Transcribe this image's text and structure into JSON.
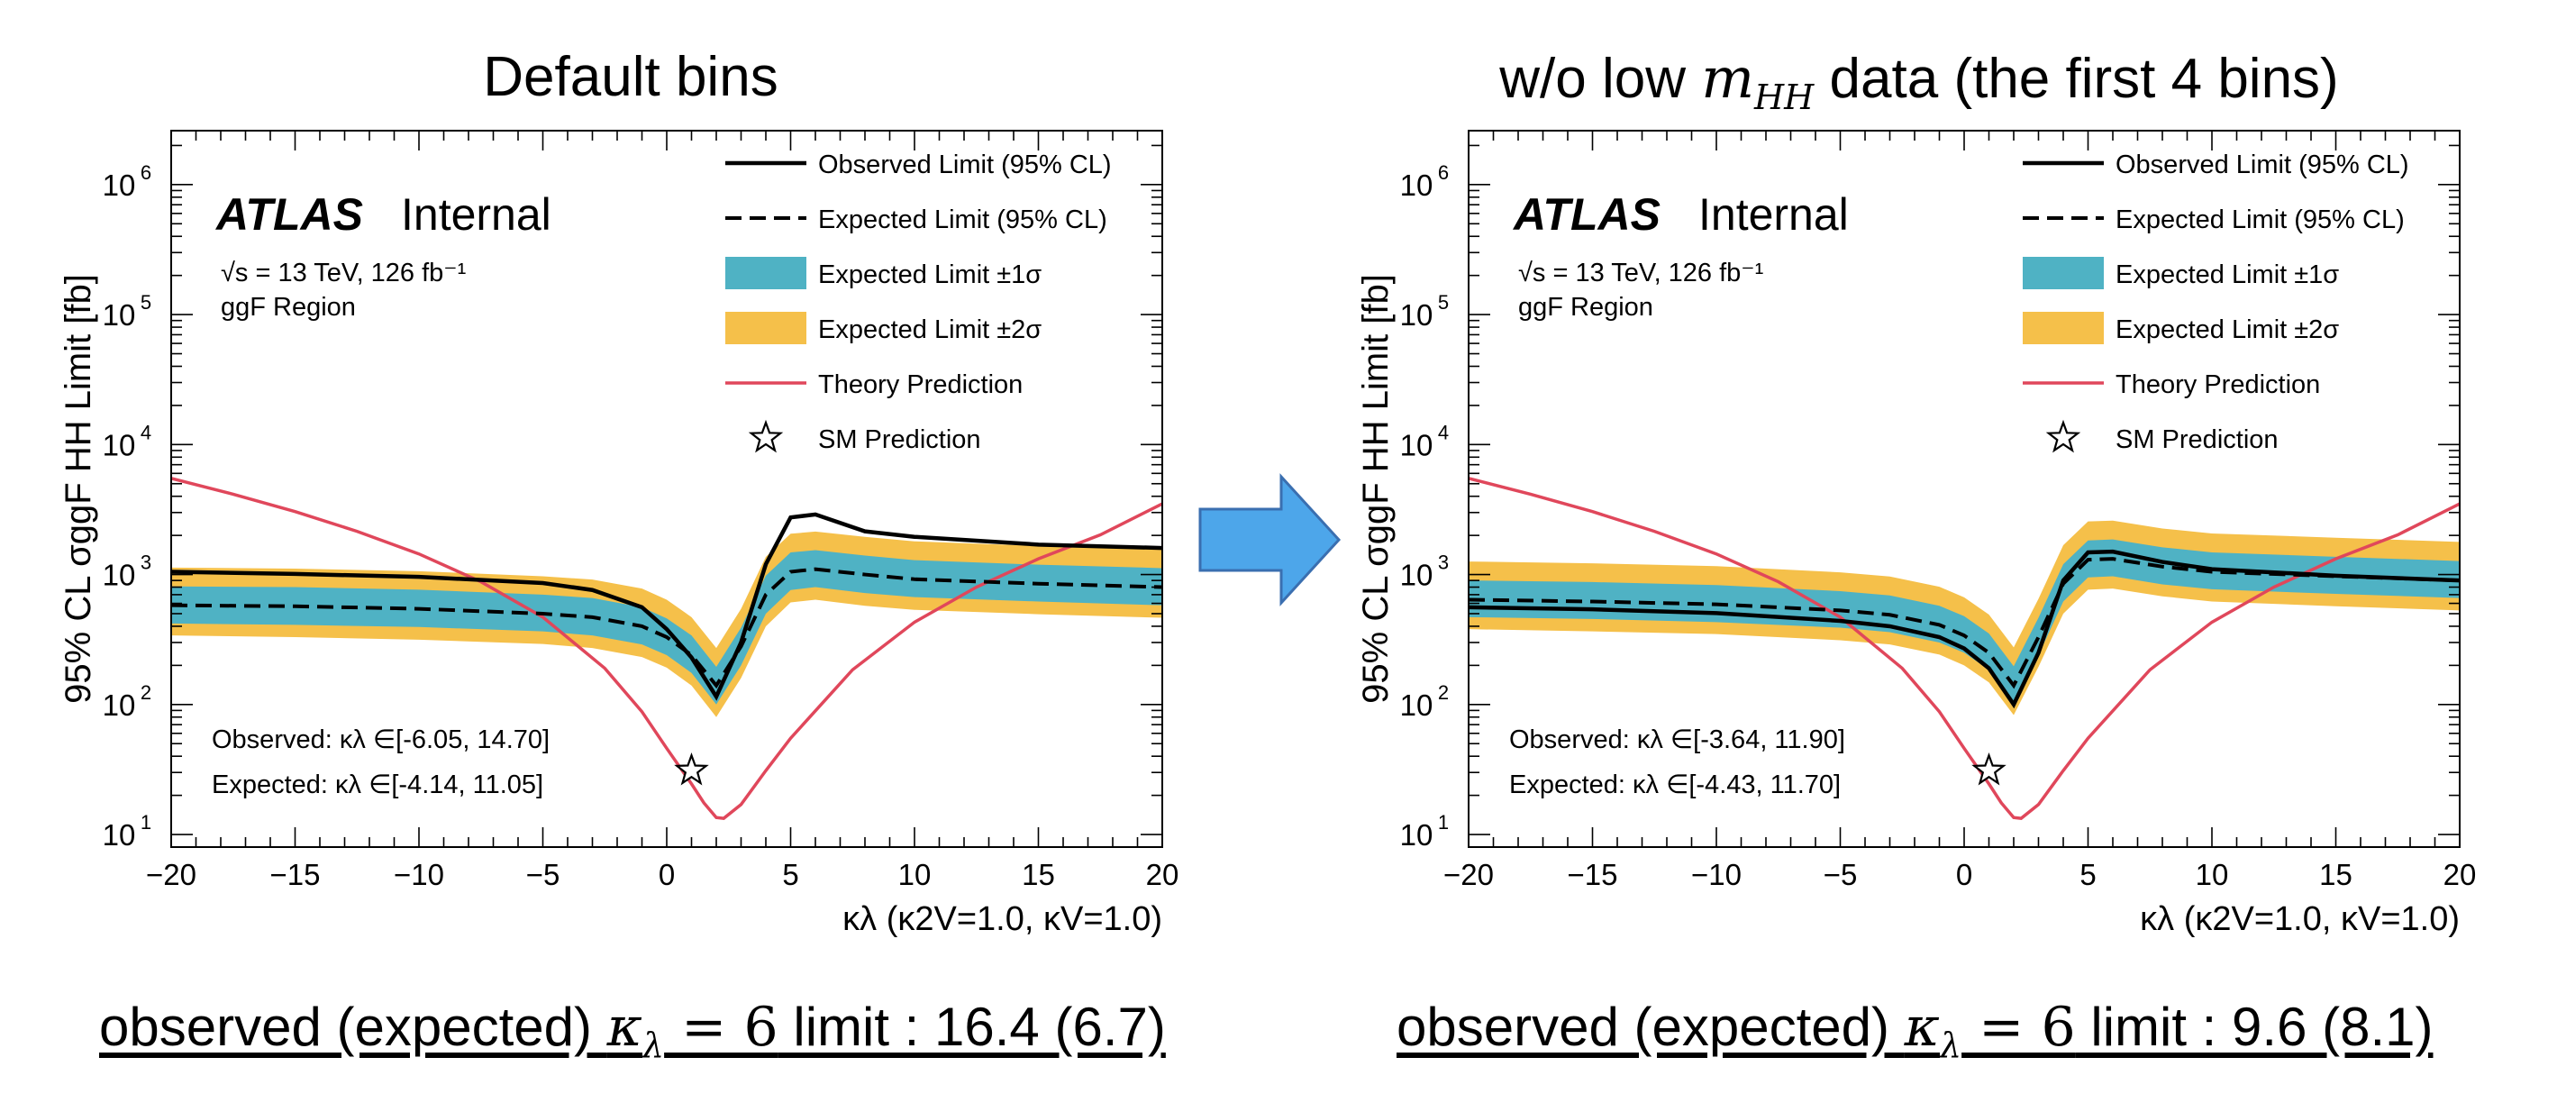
{
  "panels": [
    {
      "title_prefix": "Default bins",
      "title_mhh": "",
      "title_suffix": "",
      "bottom_text_pre": "observed (expected) ",
      "bottom_text_math": "κ",
      "bottom_text_math_sub": "λ",
      "bottom_text_eq": " = 6",
      "bottom_text_post": " limit : 16.4 (6.7)"
    },
    {
      "title_prefix": "w/o low ",
      "title_mhh": "m",
      "title_mhh_sub": "HH",
      "title_suffix": " data (the first 4 bins)",
      "bottom_text_pre": "observed (expected) ",
      "bottom_text_math": "κ",
      "bottom_text_math_sub": "λ",
      "bottom_text_eq": " = 6",
      "bottom_text_post": " limit : 9.6 (8.1)"
    }
  ],
  "colors": {
    "observed": "#000000",
    "expected": "#000000",
    "band1": "#4fb2c4",
    "band2": "#f5c04a",
    "theory": "#e0475b",
    "arrow": "#4da6ea",
    "arrow_border": "#3a6fb0"
  },
  "chart_data": [
    {
      "type": "line",
      "ylog": true,
      "xlim": [
        -20,
        20
      ],
      "ylim": [
        8,
        2600000
      ],
      "x_ticks": [
        "−20",
        "−15",
        "−10",
        "−5",
        "0",
        "5",
        "10",
        "15",
        "20"
      ],
      "x_tick_values": [
        -20,
        -15,
        -10,
        -5,
        0,
        5,
        10,
        15,
        20
      ],
      "y_ticks": [
        "10",
        "10",
        "10",
        "10",
        "10",
        "10"
      ],
      "y_tick_exps": [
        "1",
        "2",
        "3",
        "4",
        "5",
        "6"
      ],
      "xlabel": "κλ (κ2V=1.0, κV=1.0)",
      "ylabel": "95% CL σggF HH Limit [fb]",
      "atlas_label": "ATLAS",
      "atlas_suffix": "Internal",
      "energy_label": "√s = 13 TeV, 126 fb⁻¹",
      "region_label": "ggF Region",
      "legend": [
        {
          "label": "Observed Limit (95% CL)",
          "style": "solid"
        },
        {
          "label": "Expected Limit (95% CL)",
          "style": "dashed"
        },
        {
          "label": "Expected Limit ±1σ",
          "style": "band1"
        },
        {
          "label": "Expected Limit ±2σ",
          "style": "band2"
        },
        {
          "label": "Theory Prediction",
          "style": "theory"
        },
        {
          "label": "SM Prediction",
          "style": "star"
        }
      ],
      "observed_interval": "Observed: κλ ∈[-6.05, 14.70]",
      "expected_interval": "Expected: κλ ∈[-4.14, 11.05]",
      "x": [
        -20,
        -15,
        -10,
        -5,
        -3,
        -1,
        0,
        1,
        2,
        3,
        4,
        5,
        6,
        8,
        10,
        15,
        20
      ],
      "series": [
        {
          "name": "Observed Limit (95% CL)",
          "values": [
            1050,
            1010,
            960,
            860,
            760,
            560,
            380,
            230,
            115,
            300,
            1200,
            2750,
            2900,
            2150,
            1950,
            1700,
            1600
          ]
        },
        {
          "name": "Expected Limit (95% CL)",
          "values": [
            580,
            570,
            545,
            500,
            470,
            400,
            330,
            240,
            140,
            280,
            700,
            1050,
            1100,
            1000,
            920,
            850,
            800
          ]
        },
        {
          "name": "Expected Limit ±1σ",
          "lower": [
            420,
            410,
            395,
            365,
            340,
            290,
            240,
            175,
            100,
            200,
            500,
            760,
            800,
            720,
            670,
            620,
            580
          ],
          "upper": [
            810,
            800,
            765,
            700,
            660,
            560,
            460,
            340,
            195,
            390,
            980,
            1480,
            1540,
            1400,
            1290,
            1190,
            1120
          ]
        },
        {
          "name": "Expected Limit ±2σ",
          "lower": [
            340,
            330,
            315,
            292,
            272,
            232,
            192,
            140,
            80,
            160,
            400,
            610,
            640,
            575,
            535,
            495,
            465
          ],
          "upper": [
            1130,
            1110,
            1060,
            970,
            915,
            780,
            640,
            470,
            272,
            545,
            1370,
            2060,
            2140,
            1950,
            1800,
            1660,
            1560
          ]
        },
        {
          "name": "Theory Prediction",
          "x": [
            -20,
            -17.5,
            -15,
            -12.5,
            -10,
            -7.5,
            -5,
            -2.5,
            -1,
            0,
            1,
            1.5,
            2,
            2.3,
            3,
            4,
            5,
            7.5,
            10,
            12.5,
            15,
            17.5,
            20
          ],
          "values": [
            5500,
            4150,
            3050,
            2150,
            1440,
            880,
            470,
            190,
            88,
            46,
            24.5,
            17.5,
            13.5,
            13.3,
            17,
            31,
            55,
            185,
            430,
            800,
            1320,
            2020,
            3500
          ]
        }
      ],
      "sm_point": {
        "x": 1,
        "y": 31
      }
    },
    {
      "type": "line",
      "ylog": true,
      "xlim": [
        -20,
        20
      ],
      "ylim": [
        8,
        2600000
      ],
      "x_ticks": [
        "−20",
        "−15",
        "−10",
        "−5",
        "0",
        "5",
        "10",
        "15",
        "20"
      ],
      "x_tick_values": [
        -20,
        -15,
        -10,
        -5,
        0,
        5,
        10,
        15,
        20
      ],
      "y_ticks": [
        "10",
        "10",
        "10",
        "10",
        "10",
        "10"
      ],
      "y_tick_exps": [
        "1",
        "2",
        "3",
        "4",
        "5",
        "6"
      ],
      "xlabel": "κλ (κ2V=1.0, κV=1.0)",
      "ylabel": "95% CL σggF HH Limit [fb]",
      "atlas_label": "ATLAS",
      "atlas_suffix": "Internal",
      "energy_label": "√s = 13 TeV, 126 fb⁻¹",
      "region_label": "ggF Region",
      "legend": [
        {
          "label": "Observed Limit (95% CL)",
          "style": "solid"
        },
        {
          "label": "Expected Limit (95% CL)",
          "style": "dashed"
        },
        {
          "label": "Expected Limit ±1σ",
          "style": "band1"
        },
        {
          "label": "Expected Limit ±2σ",
          "style": "band2"
        },
        {
          "label": "Theory Prediction",
          "style": "theory"
        },
        {
          "label": "SM Prediction",
          "style": "star"
        }
      ],
      "observed_interval": "Observed: κλ ∈[-3.64, 11.90]",
      "expected_interval": "Expected: κλ ∈[-4.43, 11.70]",
      "x": [
        -20,
        -15,
        -10,
        -5,
        -3,
        -1,
        0,
        1,
        2,
        3,
        4,
        5,
        6,
        8,
        10,
        15,
        20
      ],
      "series": [
        {
          "name": "Observed Limit (95% CL)",
          "values": [
            560,
            540,
            505,
            440,
            400,
            330,
            270,
            190,
            100,
            250,
            900,
            1480,
            1500,
            1250,
            1100,
            980,
            900
          ]
        },
        {
          "name": "Expected Limit (95% CL)",
          "values": [
            640,
            620,
            590,
            530,
            490,
            410,
            340,
            250,
            140,
            330,
            850,
            1300,
            1320,
            1150,
            1050,
            970,
            900
          ]
        },
        {
          "name": "Expected Limit ±1σ",
          "lower": [
            470,
            455,
            430,
            390,
            360,
            300,
            250,
            185,
            103,
            240,
            620,
            950,
            970,
            840,
            770,
            710,
            660
          ],
          "upper": [
            900,
            875,
            830,
            745,
            690,
            575,
            478,
            352,
            197,
            465,
            1200,
            1830,
            1860,
            1620,
            1480,
            1370,
            1270
          ]
        },
        {
          "name": "Expected Limit ±2σ",
          "lower": [
            380,
            365,
            348,
            312,
            290,
            242,
            200,
            148,
            83,
            195,
            500,
            765,
            780,
            680,
            620,
            570,
            530
          ],
          "upper": [
            1260,
            1220,
            1160,
            1040,
            965,
            805,
            668,
            492,
            275,
            650,
            1680,
            2560,
            2600,
            2260,
            2070,
            1920,
            1780
          ]
        },
        {
          "name": "Theory Prediction",
          "x": [
            -20,
            -17.5,
            -15,
            -12.5,
            -10,
            -7.5,
            -5,
            -2.5,
            -1,
            0,
            1,
            1.5,
            2,
            2.3,
            3,
            4,
            5,
            7.5,
            10,
            12.5,
            15,
            17.5,
            20
          ],
          "values": [
            5500,
            4150,
            3050,
            2150,
            1440,
            880,
            470,
            190,
            88,
            46,
            24.5,
            17.5,
            13.5,
            13.3,
            17,
            31,
            55,
            185,
            430,
            800,
            1320,
            2020,
            3500
          ]
        }
      ],
      "sm_point": {
        "x": 1,
        "y": 31
      }
    }
  ]
}
